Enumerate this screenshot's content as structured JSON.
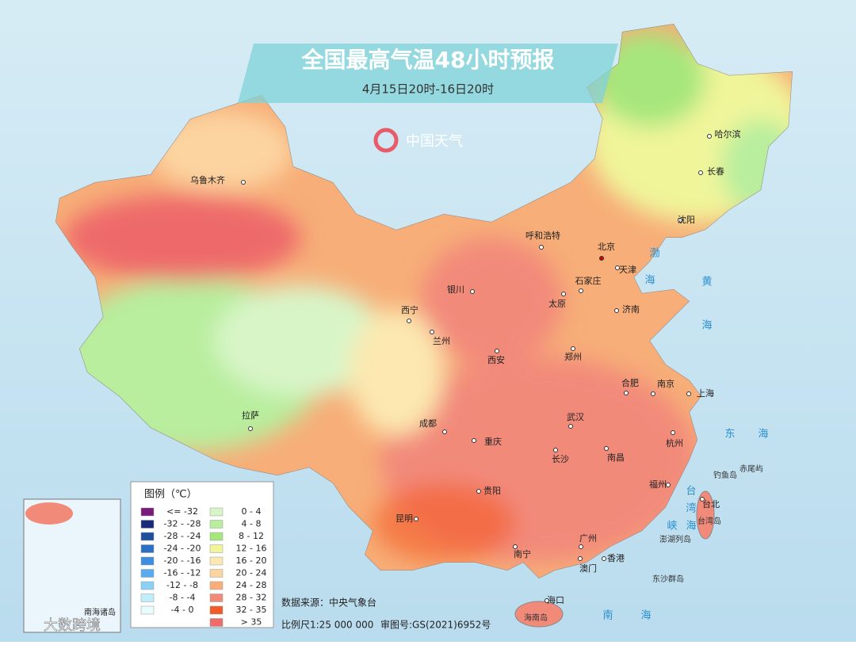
{
  "header": {
    "title": "全国最高气温48小时预报",
    "subtitle": "4月15日20时-16日20时",
    "logo": "中国天气"
  },
  "cities": [
    "乌鲁木齐",
    "哈尔滨",
    "长春",
    "沈阳",
    "呼和浩特",
    "北京",
    "天津",
    "石家庄",
    "济南",
    "太原",
    "银川",
    "西宁",
    "兰州",
    "西安",
    "郑州",
    "合肥",
    "南京",
    "上海",
    "武汉",
    "成都",
    "重庆",
    "长沙",
    "南昌",
    "杭州",
    "拉萨",
    "贵阳",
    "福州",
    "台北",
    "昆明",
    "广州",
    "南宁",
    "香港",
    "澳门",
    "海口"
  ],
  "seas": [
    "渤",
    "海",
    "黄",
    "海",
    "东",
    "海",
    "台",
    "湾",
    "海",
    "峡",
    "南",
    "海"
  ],
  "islands": [
    "赤尾屿",
    "钓鱼岛",
    "台湾岛",
    "澎湖列岛",
    "东沙群岛",
    "海南岛"
  ],
  "legend": {
    "title": "图例（℃）",
    "items": [
      {
        "label": "<= -32",
        "color": "#7a1a7a"
      },
      {
        "label": "-32 - -28",
        "color": "#1a2a7a"
      },
      {
        "label": "-28 - -24",
        "color": "#1f4e9c"
      },
      {
        "label": "-24 - -20",
        "color": "#2c6fc7"
      },
      {
        "label": "-20 - -16",
        "color": "#3d8ee0"
      },
      {
        "label": "-16 - -12",
        "color": "#5aaaf0"
      },
      {
        "label": "-12 - -8",
        "color": "#8dd0f5"
      },
      {
        "label": "-8 - -4",
        "color": "#bfeefa"
      },
      {
        "label": "-4 - 0",
        "color": "#e8fbfd"
      },
      {
        "label": "0 - 4",
        "color": "#d8f5c8"
      },
      {
        "label": "4 - 8",
        "color": "#b8ee9e"
      },
      {
        "label": "8 - 12",
        "color": "#a6e67c"
      },
      {
        "label": "12 - 16",
        "color": "#f0f59a"
      },
      {
        "label": "16 - 20",
        "color": "#fce8b0"
      },
      {
        "label": "20 - 24",
        "color": "#fcd4a0"
      },
      {
        "label": "24 - 28",
        "color": "#f7ae78"
      },
      {
        "label": "28 - 32",
        "color": "#f28a7a"
      },
      {
        "label": "32 - 35",
        "color": "#f45a25"
      },
      {
        "label": "> 35",
        "color": "#ee6b6b"
      }
    ]
  },
  "footer": {
    "source": "数据来源：中央气象台",
    "scale": "比例尺1:25 000 000",
    "approval": "审图号:GS(2021)6952号"
  },
  "inset": {
    "label": "南海诸岛"
  },
  "watermark": "大数跨境"
}
